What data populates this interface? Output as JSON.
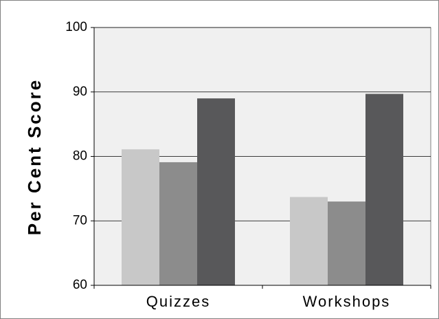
{
  "chart_data": {
    "type": "bar",
    "y_label": "Per Cent Score",
    "categories": [
      "Quizzes",
      "Workshops"
    ],
    "series": [
      {
        "color": "#c8c8c8",
        "values": [
          81.1,
          73.7
        ]
      },
      {
        "color": "#8c8c8c",
        "values": [
          79.1,
          73
        ]
      },
      {
        "color": "#58585a",
        "values": [
          89,
          89.7
        ]
      }
    ],
    "ylim": [
      60,
      100
    ],
    "yticks": [
      60,
      70,
      80,
      90,
      100
    ],
    "grid": true
  }
}
